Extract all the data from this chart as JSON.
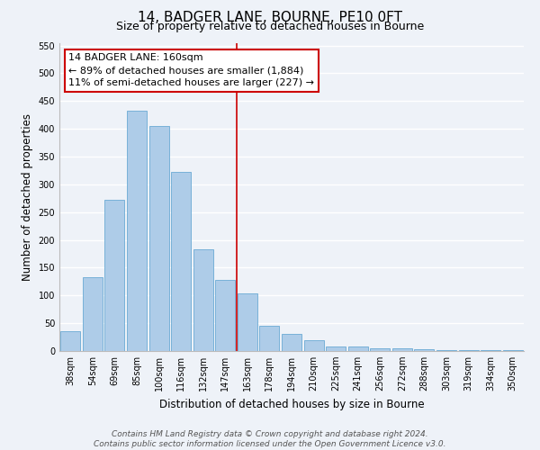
{
  "title": "14, BADGER LANE, BOURNE, PE10 0FT",
  "subtitle": "Size of property relative to detached houses in Bourne",
  "xlabel": "Distribution of detached houses by size in Bourne",
  "ylabel": "Number of detached properties",
  "bin_labels": [
    "38sqm",
    "54sqm",
    "69sqm",
    "85sqm",
    "100sqm",
    "116sqm",
    "132sqm",
    "147sqm",
    "163sqm",
    "178sqm",
    "194sqm",
    "210sqm",
    "225sqm",
    "241sqm",
    "256sqm",
    "272sqm",
    "288sqm",
    "303sqm",
    "319sqm",
    "334sqm",
    "350sqm"
  ],
  "bar_heights": [
    35,
    133,
    272,
    433,
    405,
    322,
    183,
    128,
    103,
    46,
    30,
    20,
    8,
    8,
    5,
    5,
    3,
    2,
    2,
    2,
    2
  ],
  "bar_color": "#aecce8",
  "bar_edge_color": "#6aaad4",
  "vline_x_index": 8,
  "vline_color": "#cc0000",
  "annotation_line1": "14 BADGER LANE: 160sqm",
  "annotation_line2": "← 89% of detached houses are smaller (1,884)",
  "annotation_line3": "11% of semi-detached houses are larger (227) →",
  "annotation_box_color": "#ffffff",
  "annotation_box_edge": "#cc0000",
  "footer_line1": "Contains HM Land Registry data © Crown copyright and database right 2024.",
  "footer_line2": "Contains public sector information licensed under the Open Government Licence v3.0.",
  "ylim": [
    0,
    555
  ],
  "yticks": [
    0,
    50,
    100,
    150,
    200,
    250,
    300,
    350,
    400,
    450,
    500,
    550
  ],
  "background_color": "#eef2f8",
  "grid_color": "#ffffff",
  "title_fontsize": 11,
  "subtitle_fontsize": 9,
  "axis_label_fontsize": 8.5,
  "tick_fontsize": 7,
  "annotation_fontsize": 8,
  "footer_fontsize": 6.5
}
